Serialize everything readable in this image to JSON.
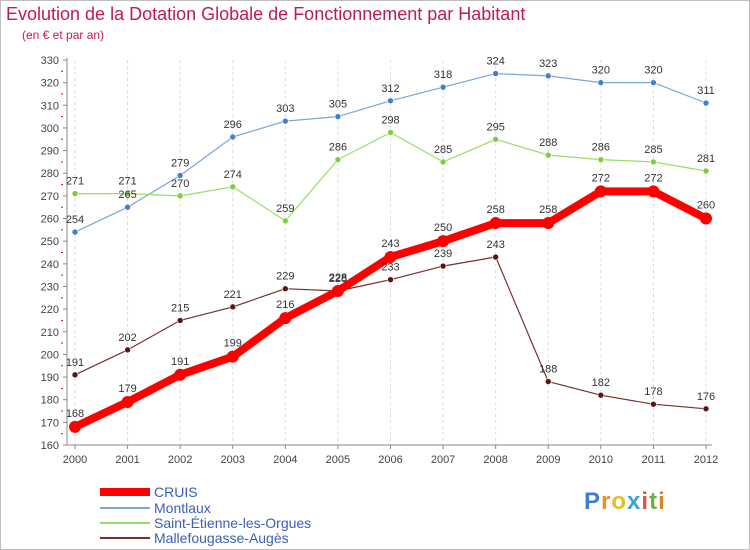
{
  "header": {
    "title": "Evolution de la Dotation Globale de Fonctionnement par Habitant",
    "subtitle": "(en € et par an)"
  },
  "chart_data": {
    "type": "line",
    "title": "Evolution de la Dotation Globale de Fonctionnement par Habitant",
    "subtitle": "(en € et par an)",
    "xlabel": "",
    "ylabel": "",
    "ylim": [
      160,
      330
    ],
    "yticks": [
      160,
      170,
      180,
      190,
      200,
      210,
      220,
      230,
      240,
      250,
      260,
      270,
      280,
      290,
      300,
      310,
      320,
      330
    ],
    "grid": "dashed-vertical",
    "categories": [
      "2000",
      "2001",
      "2002",
      "2003",
      "2004",
      "2005",
      "2006",
      "2007",
      "2008",
      "2009",
      "2010",
      "2011",
      "2012"
    ],
    "series": [
      {
        "name": "CRUIS",
        "color": "#ff0000",
        "values": [
          168,
          179,
          191,
          199,
          216,
          228,
          243,
          250,
          258,
          258,
          272,
          272,
          260
        ]
      },
      {
        "name": "Montlaux",
        "color": "#7aa7d8",
        "values": [
          254,
          265,
          279,
          296,
          303,
          305,
          312,
          318,
          324,
          323,
          320,
          320,
          311
        ]
      },
      {
        "name": "Saint-Étienne-les-Orgues",
        "color": "#99dd66",
        "values": [
          271,
          271,
          270,
          274,
          259,
          286,
          298,
          285,
          295,
          288,
          286,
          285,
          281
        ]
      },
      {
        "name": "Mallefougasse-Augès",
        "color": "#7a2e2e",
        "values": [
          191,
          202,
          215,
          221,
          229,
          228,
          233,
          239,
          243,
          188,
          182,
          178,
          176
        ]
      }
    ],
    "legend_position": "bottom-left"
  },
  "logo": {
    "letters": [
      "P",
      "r",
      "o",
      "x",
      "i",
      "t",
      "i"
    ]
  }
}
